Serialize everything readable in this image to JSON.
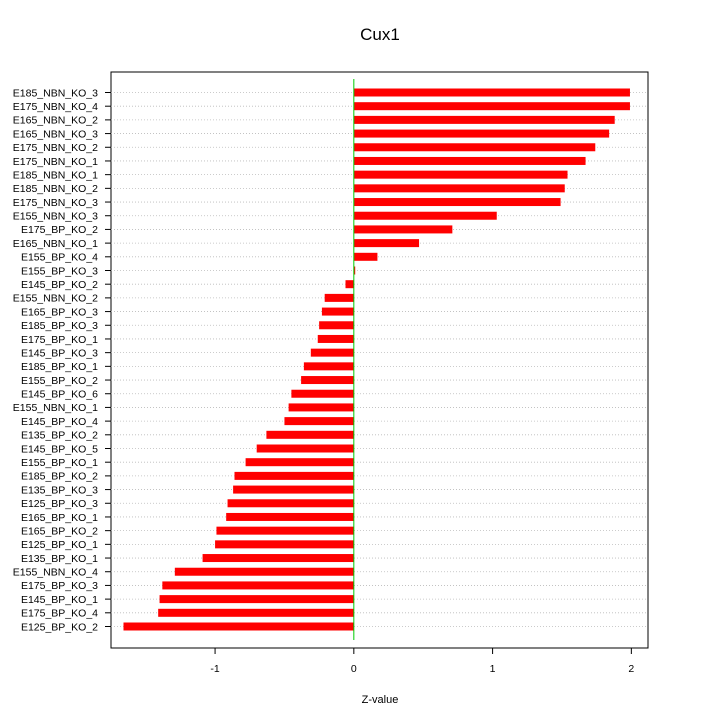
{
  "chart_data": {
    "type": "bar",
    "orientation": "horizontal",
    "title": "Cux1",
    "xlabel": "Z-value",
    "ylabel": "",
    "xlim": [
      -1.75,
      2.12
    ],
    "xticks": [
      -1,
      0,
      1,
      2
    ],
    "xtick_labels": [
      "-1",
      "0",
      "1",
      "2"
    ],
    "grid": "horizontal dotted",
    "legend": "none",
    "colors": {
      "bar": "#ff0000",
      "zero_line": "#00cc00",
      "grid": "#bbbbbb",
      "axis": "#000000"
    },
    "categories": [
      "E185_NBN_KO_3",
      "E175_NBN_KO_4",
      "E165_NBN_KO_2",
      "E165_NBN_KO_3",
      "E175_NBN_KO_2",
      "E175_NBN_KO_1",
      "E185_NBN_KO_1",
      "E185_NBN_KO_2",
      "E175_NBN_KO_3",
      "E155_NBN_KO_3",
      "E175_BP_KO_2",
      "E165_NBN_KO_1",
      "E155_BP_KO_4",
      "E155_BP_KO_3",
      "E145_BP_KO_2",
      "E155_NBN_KO_2",
      "E165_BP_KO_3",
      "E185_BP_KO_3",
      "E175_BP_KO_1",
      "E145_BP_KO_3",
      "E185_BP_KO_1",
      "E155_BP_KO_2",
      "E145_BP_KO_6",
      "E155_NBN_KO_1",
      "E145_BP_KO_4",
      "E135_BP_KO_2",
      "E145_BP_KO_5",
      "E155_BP_KO_1",
      "E185_BP_KO_2",
      "E135_BP_KO_3",
      "E125_BP_KO_3",
      "E165_BP_KO_1",
      "E165_BP_KO_2",
      "E125_BP_KO_1",
      "E135_BP_KO_1",
      "E155_NBN_KO_4",
      "E175_BP_KO_3",
      "E145_BP_KO_1",
      "E175_BP_KO_4",
      "E125_BP_KO_2"
    ],
    "values": [
      1.99,
      1.99,
      1.88,
      1.84,
      1.74,
      1.67,
      1.54,
      1.52,
      1.49,
      1.03,
      0.71,
      0.47,
      0.17,
      0.01,
      -0.06,
      -0.21,
      -0.23,
      -0.25,
      -0.26,
      -0.31,
      -0.36,
      -0.38,
      -0.45,
      -0.47,
      -0.5,
      -0.63,
      -0.7,
      -0.78,
      -0.86,
      -0.87,
      -0.91,
      -0.92,
      -0.99,
      -1.0,
      -1.09,
      -1.29,
      -1.38,
      -1.4,
      -1.41,
      -1.66
    ]
  }
}
